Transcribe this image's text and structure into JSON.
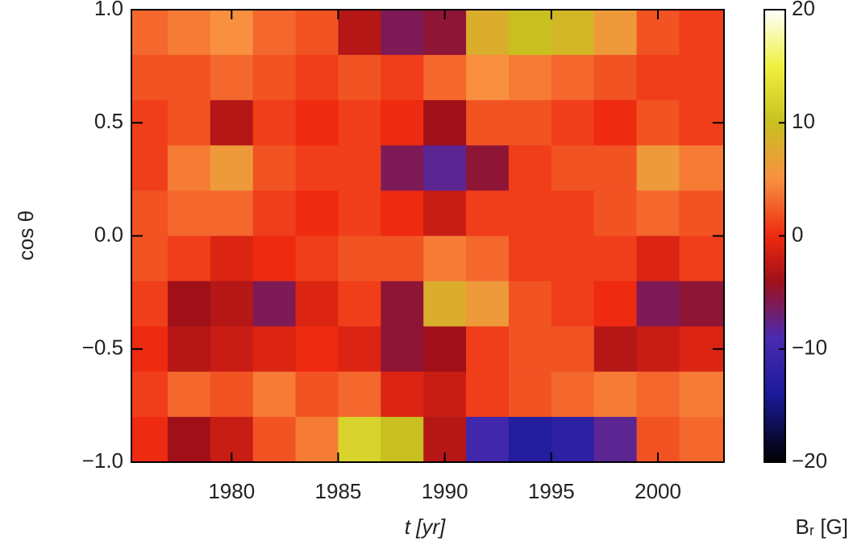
{
  "chart_data": {
    "type": "heatmap",
    "x_label": "t [yr]",
    "y_label": "cos θ",
    "colorbar_label": "Bᵣ [G]",
    "x": [
      1976,
      1978,
      1980,
      1982,
      1984,
      1986,
      1988,
      1990,
      1992,
      1994,
      1996,
      1998,
      2000,
      2002
    ],
    "y": [
      0.9,
      0.7,
      0.5,
      0.3,
      0.1,
      -0.1,
      -0.3,
      -0.5,
      -0.7,
      -0.9
    ],
    "z": [
      [
        3,
        4,
        5,
        3,
        2,
        -3,
        -6,
        -5,
        8,
        10,
        9,
        6,
        2,
        1
      ],
      [
        2,
        2,
        3,
        2,
        1,
        2,
        1,
        3,
        5,
        4,
        3,
        2,
        1,
        1
      ],
      [
        1,
        2,
        -3,
        1,
        0,
        1,
        0,
        -4,
        2,
        2,
        1,
        0,
        2,
        1
      ],
      [
        1,
        4,
        6,
        2,
        1,
        1,
        -6,
        -8,
        -5,
        1,
        2,
        2,
        6,
        4
      ],
      [
        2,
        3,
        3,
        1,
        0,
        1,
        0,
        -2,
        1,
        1,
        1,
        2,
        3,
        2
      ],
      [
        2,
        1,
        -1,
        0,
        1,
        2,
        2,
        4,
        3,
        1,
        1,
        1,
        -1,
        1
      ],
      [
        1,
        -4,
        -3,
        -6,
        -1,
        1,
        -5,
        8,
        6,
        2,
        1,
        0,
        -6,
        -5
      ],
      [
        0,
        -3,
        -2,
        -1,
        0,
        -1,
        -5,
        -4,
        1,
        2,
        2,
        -3,
        -2,
        -1
      ],
      [
        1,
        3,
        2,
        4,
        2,
        3,
        -1,
        -2,
        1,
        2,
        3,
        4,
        3,
        4
      ],
      [
        0,
        -4,
        -2,
        2,
        4,
        12,
        10,
        -3,
        -10,
        -13,
        -12,
        -8,
        2,
        3
      ]
    ],
    "xlim": [
      1975.3,
      2003.1
    ],
    "ylim": [
      -1,
      1
    ],
    "xticks": [
      1980,
      1985,
      1990,
      1995,
      2000
    ],
    "yticks": [
      {
        "value": -1,
        "label": "−1.0"
      },
      {
        "value": -0.5,
        "label": "−0.5"
      },
      {
        "value": 0,
        "label": "0.0"
      },
      {
        "value": 0.5,
        "label": "0.5"
      },
      {
        "value": 1,
        "label": "1.0"
      }
    ],
    "zlim": [
      -20,
      20
    ],
    "zticks": [
      {
        "value": -20,
        "label": "−20"
      },
      {
        "value": -10,
        "label": "−10"
      },
      0,
      10,
      20
    ],
    "colorscale": [
      {
        "value": -20,
        "color": "#000000"
      },
      {
        "value": -14,
        "color": "#1a1a9a"
      },
      {
        "value": -9,
        "color": "#4a2ab0"
      },
      {
        "value": -4,
        "color": "#a01018"
      },
      {
        "value": 0,
        "color": "#ee2a10"
      },
      {
        "value": 5,
        "color": "#f89040"
      },
      {
        "value": 10,
        "color": "#c8c020"
      },
      {
        "value": 15,
        "color": "#f0f040"
      },
      {
        "value": 20,
        "color": "#ffffff"
      }
    ]
  }
}
